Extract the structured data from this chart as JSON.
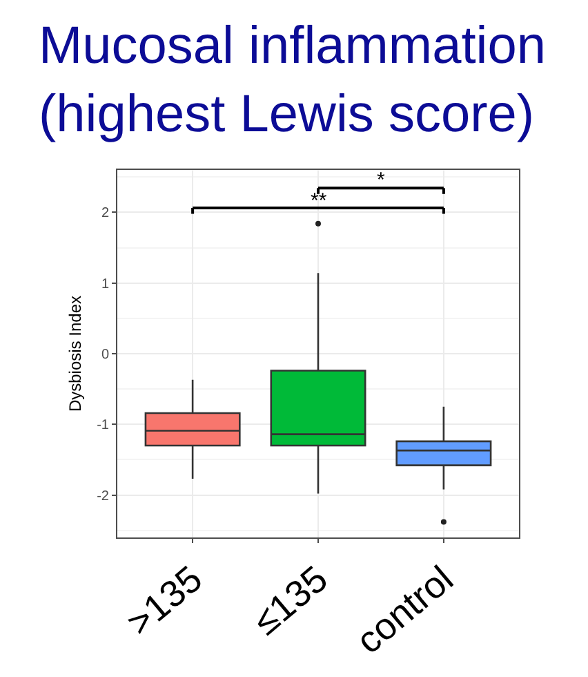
{
  "chart_data": {
    "type": "box",
    "title": "Mucosal inflammation\n(highest Lewis score)",
    "ylabel": "Dysbiosis Index",
    "categories": [
      ">135",
      "≤135",
      "control"
    ],
    "colors": [
      "#f8766d",
      "#00ba38",
      "#619cff"
    ],
    "boxes": [
      {
        "low": -1.77,
        "q1": -1.3,
        "median": -1.09,
        "q3": -0.84,
        "high": -0.37
      },
      {
        "low": -1.98,
        "q1": -1.3,
        "median": -1.14,
        "q3": -0.24,
        "high": 1.14,
        "outliers": [
          1.84
        ]
      },
      {
        "low": -1.92,
        "q1": -1.58,
        "median": -1.37,
        "q3": -1.24,
        "high": -0.75,
        "outliers": [
          -2.38
        ]
      }
    ],
    "ylim": [
      -2.6,
      2.6
    ],
    "yticks": [
      -2,
      -1,
      0,
      1,
      2
    ],
    "grid": true,
    "annotations": [
      "**",
      "*"
    ]
  }
}
